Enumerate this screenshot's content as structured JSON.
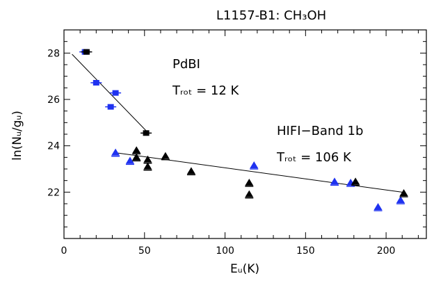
{
  "chart_data": {
    "type": "scatter",
    "title": "L1157-B1: CH₃OH",
    "xlabel": "Eᵤ(K)",
    "ylabel": "ln(Nᵤ/gᵤ)",
    "xlim": [
      0,
      225
    ],
    "ylim": [
      20,
      29
    ],
    "xticks": [
      0,
      50,
      100,
      150,
      200
    ],
    "yticks": [
      22,
      24,
      26,
      28
    ],
    "grid": false,
    "colors": {
      "blue": "#1f32f0",
      "black": "#000000"
    },
    "series": [
      {
        "marker": "square",
        "color": "blue",
        "points": [
          {
            "x": 13,
            "y": 28.05
          },
          {
            "x": 20,
            "y": 26.72
          },
          {
            "x": 29,
            "y": 25.68
          },
          {
            "x": 32,
            "y": 26.28
          }
        ]
      },
      {
        "marker": "square",
        "color": "black",
        "points": [
          {
            "x": 14,
            "y": 28.05
          },
          {
            "x": 51,
            "y": 24.55
          }
        ]
      },
      {
        "marker": "triangle",
        "color": "blue",
        "points": [
          {
            "x": 32,
            "y": 23.7
          },
          {
            "x": 41,
            "y": 23.35
          },
          {
            "x": 118,
            "y": 23.15
          },
          {
            "x": 168,
            "y": 22.45
          },
          {
            "x": 178,
            "y": 22.4
          },
          {
            "x": 195,
            "y": 21.35
          },
          {
            "x": 209,
            "y": 21.65
          }
        ]
      },
      {
        "marker": "triangle",
        "color": "black",
        "points": [
          {
            "x": 45,
            "y": 23.8
          },
          {
            "x": 45,
            "y": 23.5
          },
          {
            "x": 52,
            "y": 23.4
          },
          {
            "x": 52,
            "y": 23.1
          },
          {
            "x": 63,
            "y": 23.55
          },
          {
            "x": 79,
            "y": 22.9
          },
          {
            "x": 115,
            "y": 22.4
          },
          {
            "x": 115,
            "y": 21.9
          },
          {
            "x": 181,
            "y": 22.45
          },
          {
            "x": 211,
            "y": 21.95
          }
        ]
      }
    ],
    "fits": [
      {
        "label_name": "PdBI",
        "label_trot": "Tᵣₒₜ = 12 K",
        "x": [
          5,
          51
        ],
        "y": [
          27.95,
          24.65
        ]
      },
      {
        "label_name": "HIFI−Band 1b",
        "label_trot": "Tᵣₒₜ = 106 K",
        "x": [
          32,
          212
        ],
        "y": [
          23.7,
          21.98
        ]
      }
    ]
  }
}
